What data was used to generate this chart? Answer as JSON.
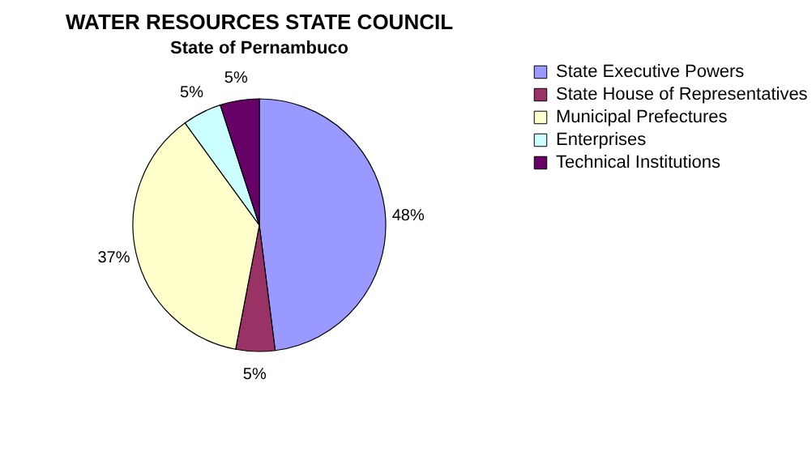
{
  "chart_data": {
    "type": "pie",
    "title": "WATER RESOURCES STATE COUNCIL",
    "subtitle": "State of Pernambuco",
    "categories": [
      "State Executive Powers",
      "State House of Representatives",
      "Municipal Prefectures",
      "Enterprises",
      "Technical Institutions"
    ],
    "values": [
      48,
      5,
      37,
      5,
      5
    ],
    "value_labels": [
      "48%",
      "5%",
      "37%",
      "5%",
      "5%"
    ],
    "colors": [
      "#9999ff",
      "#993366",
      "#ffffcc",
      "#ccffff",
      "#660066"
    ],
    "legend": "right"
  }
}
